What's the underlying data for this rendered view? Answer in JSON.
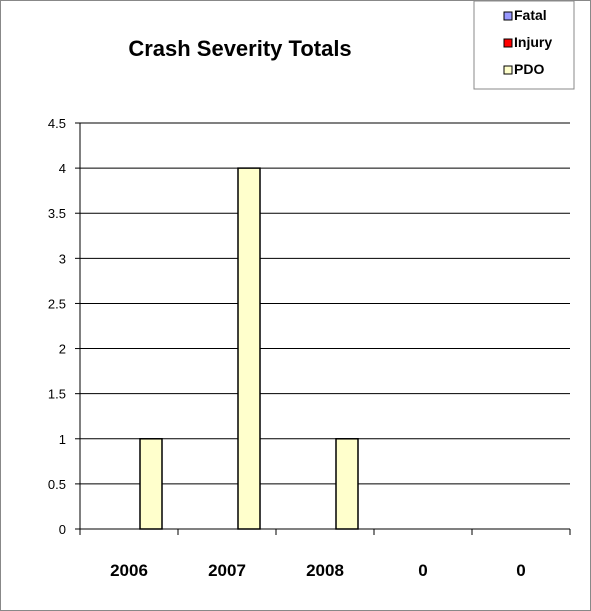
{
  "chart_data": {
    "type": "bar",
    "title": "Crash Severity Totals",
    "categories": [
      "2006",
      "2007",
      "2008",
      "0",
      "0"
    ],
    "series": [
      {
        "name": "Fatal",
        "color": "#9999ff",
        "values": [
          0,
          0,
          0,
          0,
          0
        ]
      },
      {
        "name": "Injury",
        "color": "#ff0000",
        "values": [
          0,
          0,
          0,
          0,
          0
        ]
      },
      {
        "name": "PDO",
        "color": "#ffffcc",
        "values": [
          1,
          4,
          1,
          0,
          0
        ]
      }
    ],
    "ylim": [
      0,
      4.5
    ],
    "yticks": [
      "0",
      "0.5",
      "1",
      "1.5",
      "2",
      "2.5",
      "3",
      "3.5",
      "4",
      "4.5"
    ],
    "xlabel": "",
    "ylabel": "",
    "grid": true,
    "legend_position": "top-right"
  }
}
